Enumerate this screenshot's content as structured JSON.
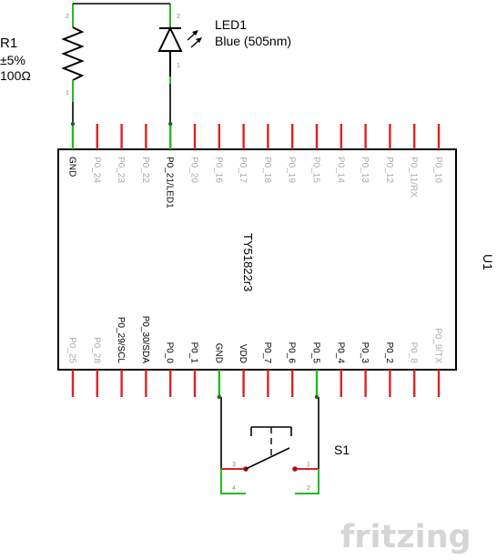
{
  "resistor": {
    "ref": "R1",
    "tolerance": "±5%",
    "value": "100Ω",
    "pin_top": "2",
    "pin_bottom": "1"
  },
  "led": {
    "ref": "LED1",
    "desc": "Blue (505nm)",
    "pin_top": "2",
    "pin_bottom": "1"
  },
  "chip": {
    "ref": "U1",
    "part": "TY51822r3",
    "top_pins": [
      {
        "name": "GND",
        "connected": true
      },
      {
        "name": "P0_24",
        "connected": false
      },
      {
        "name": "P0_23",
        "connected": false
      },
      {
        "name": "P0_22",
        "connected": false
      },
      {
        "name": "P0_21/LED1",
        "connected": true
      },
      {
        "name": "P0_20",
        "connected": false
      },
      {
        "name": "P0_16",
        "connected": false
      },
      {
        "name": "P0_17",
        "connected": false
      },
      {
        "name": "P0_18",
        "connected": false
      },
      {
        "name": "P0_19",
        "connected": false
      },
      {
        "name": "P0_15",
        "connected": false
      },
      {
        "name": "P0_14",
        "connected": false
      },
      {
        "name": "P0_13",
        "connected": false
      },
      {
        "name": "P0_12",
        "connected": false
      },
      {
        "name": "P0_11/RX",
        "connected": false
      },
      {
        "name": "P0_10",
        "connected": false
      }
    ],
    "bottom_pins": [
      {
        "name": "P0_25",
        "connected": false,
        "dim": true
      },
      {
        "name": "P0_28",
        "connected": false,
        "dim": true
      },
      {
        "name": "P0_29/SCL",
        "connected": false,
        "dim": false
      },
      {
        "name": "P0_30/SDA",
        "connected": false,
        "dim": false
      },
      {
        "name": "P0_0",
        "connected": false,
        "dim": false
      },
      {
        "name": "P0_1",
        "connected": false,
        "dim": false
      },
      {
        "name": "GND",
        "connected": true,
        "dim": false
      },
      {
        "name": "VDD",
        "connected": false,
        "dim": false
      },
      {
        "name": "P0_7",
        "connected": false,
        "dim": false
      },
      {
        "name": "P0_6",
        "connected": false,
        "dim": false
      },
      {
        "name": "P0_5",
        "connected": true,
        "dim": false
      },
      {
        "name": "P0_4",
        "connected": false,
        "dim": false
      },
      {
        "name": "P0_3",
        "connected": false,
        "dim": false
      },
      {
        "name": "P0_2",
        "connected": false,
        "dim": false
      },
      {
        "name": "P0_8",
        "connected": false,
        "dim": true
      },
      {
        "name": "P0_9/TX",
        "connected": false,
        "dim": true
      }
    ]
  },
  "switch": {
    "ref": "S1",
    "pins": [
      "3",
      "1",
      "4",
      "2"
    ]
  },
  "watermark": "fritzing",
  "colors": {
    "wire": "#000000",
    "pin_connected": "#22bb22",
    "pin_unconnected": "#dd2222",
    "label_active": "#000000",
    "label_dim": "#aaaaaa"
  }
}
